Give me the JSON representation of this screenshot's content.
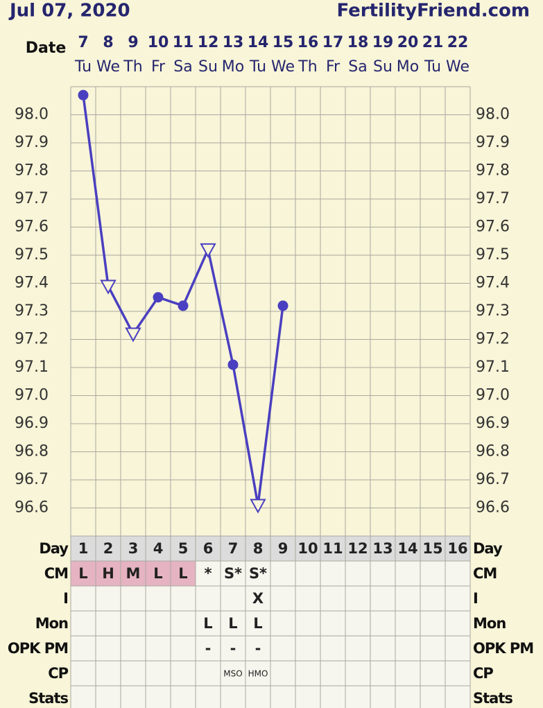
{
  "header": {
    "date": "Jul 07, 2020",
    "site": "FertilityFriend.com"
  },
  "chart_data": {
    "type": "line",
    "date_label": "Date",
    "categories": [
      "7",
      "8",
      "9",
      "10",
      "11",
      "12",
      "13",
      "14",
      "15",
      "16",
      "17",
      "18",
      "19",
      "20",
      "21",
      "22"
    ],
    "weekdays": [
      "Tu",
      "We",
      "Th",
      "Fr",
      "Sa",
      "Su",
      "Mo",
      "Tu",
      "We",
      "Th",
      "Fr",
      "Sa",
      "Su",
      "Mo",
      "Tu",
      "We"
    ],
    "series": [
      {
        "color": "#4a3fc0",
        "values": [
          98.07,
          97.39,
          97.22,
          97.35,
          97.32,
          97.52,
          97.11,
          96.61,
          97.32,
          null,
          null,
          null,
          null,
          null,
          null,
          null
        ],
        "markers": [
          "circle",
          "triangle",
          "triangle",
          "circle",
          "circle",
          "triangle",
          "circle",
          "triangle",
          "circle",
          null,
          null,
          null,
          null,
          null,
          null,
          null
        ]
      }
    ],
    "ylim": [
      96.5,
      98.1
    ],
    "yticks": [
      {
        "value": 98.0,
        "label": "98.0"
      },
      {
        "value": 97.9,
        "label": "97.9"
      },
      {
        "value": 97.8,
        "label": "97.8"
      },
      {
        "value": 97.7,
        "label": "97.7"
      },
      {
        "value": 97.6,
        "label": "97.6"
      },
      {
        "value": 97.5,
        "label": "97.5"
      },
      {
        "value": 97.4,
        "label": "97.4"
      },
      {
        "value": 97.3,
        "label": "97.3"
      },
      {
        "value": 97.2,
        "label": "97.2"
      },
      {
        "value": 97.1,
        "label": "97.1"
      },
      {
        "value": 97.0,
        "label": "97.0"
      },
      {
        "value": 96.9,
        "label": "96.9"
      },
      {
        "value": 96.8,
        "label": "96.8"
      },
      {
        "value": 96.7,
        "label": "96.7"
      },
      {
        "value": 96.6,
        "label": "96.6"
      }
    ],
    "grid": true
  },
  "table": {
    "rows": [
      {
        "label": "Day",
        "cells": [
          "1",
          "2",
          "3",
          "4",
          "5",
          "6",
          "7",
          "8",
          "9",
          "10",
          "11",
          "12",
          "13",
          "14",
          "15",
          "16"
        ]
      },
      {
        "label": "CM",
        "cells": [
          "L",
          "H",
          "M",
          "L",
          "L",
          "*",
          "S*",
          "S*",
          null,
          null,
          null,
          null,
          null,
          null,
          null,
          null
        ]
      },
      {
        "label": "I",
        "cells": [
          null,
          null,
          null,
          null,
          null,
          null,
          null,
          "X",
          null,
          null,
          null,
          null,
          null,
          null,
          null,
          null
        ]
      },
      {
        "label": "Mon",
        "cells": [
          null,
          null,
          null,
          null,
          null,
          "L",
          "L",
          "L",
          null,
          null,
          null,
          null,
          null,
          null,
          null,
          null
        ]
      },
      {
        "label": "OPK PM",
        "cells": [
          null,
          null,
          null,
          null,
          null,
          "-",
          "-",
          "-",
          null,
          null,
          null,
          null,
          null,
          null,
          null,
          null
        ]
      },
      {
        "label": "CP",
        "cells": [
          null,
          null,
          null,
          null,
          null,
          null,
          "MSO",
          "HMO",
          null,
          null,
          null,
          null,
          null,
          null,
          null,
          null
        ]
      },
      {
        "label": "Stats",
        "cells": [
          null,
          null,
          null,
          null,
          null,
          null,
          null,
          null,
          null,
          null,
          null,
          null,
          null,
          null,
          null,
          null
        ]
      }
    ]
  }
}
